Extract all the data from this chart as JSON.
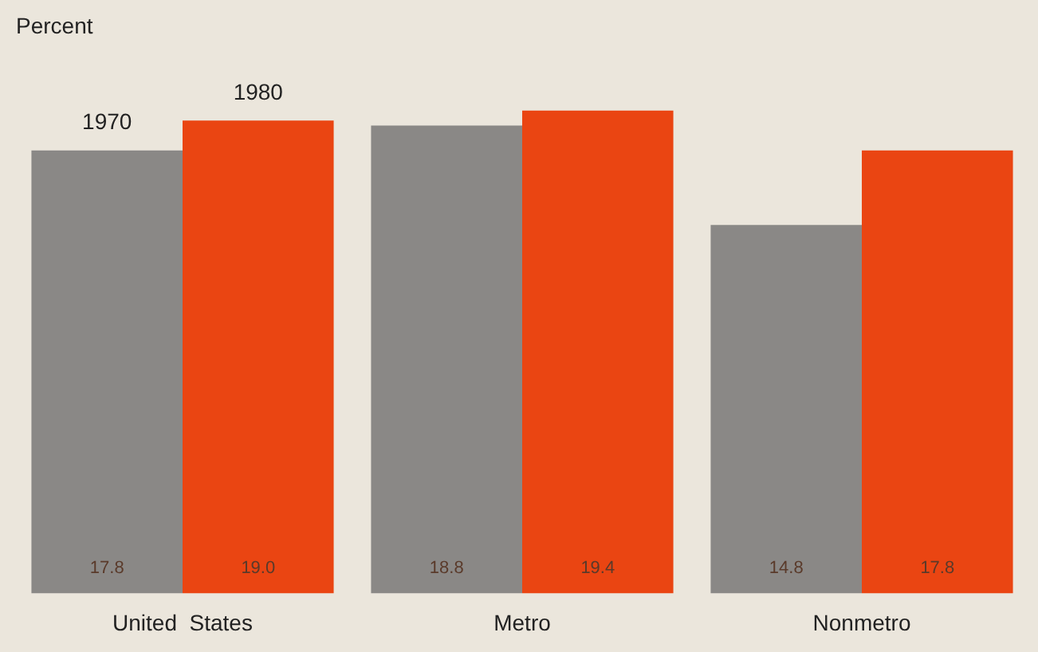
{
  "chart_data": {
    "type": "bar",
    "ylabel": "Percent",
    "categories": [
      "United  States",
      "Metro",
      "Nonmetro"
    ],
    "series": [
      {
        "name": "1970",
        "color": "#8a8886",
        "values": [
          17.8,
          18.8,
          14.8
        ],
        "value_labels": [
          "17.8",
          "18.8",
          "14.8"
        ]
      },
      {
        "name": "1980",
        "color": "#ea4512",
        "values": [
          19.0,
          19.4,
          17.8
        ],
        "value_labels": [
          "19.0",
          "19.4",
          "17.8"
        ]
      }
    ],
    "grid": false,
    "legend": false
  }
}
